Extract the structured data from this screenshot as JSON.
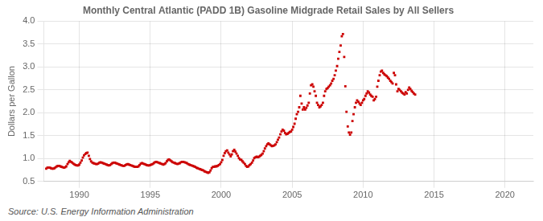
{
  "chart_data": {
    "type": "scatter",
    "title": "Monthly Central Atlantic (PADD 1B) Gasoline Midgrade Retail Sales by All Sellers",
    "y_label": "Dollars per Gallon",
    "annotations": [
      "Source: U.S. Energy Information Administration"
    ],
    "color": "#cc0000",
    "marker": "square",
    "grid": true,
    "xlim": [
      1987.5,
      2022
    ],
    "ylim": [
      0.5,
      4.0
    ],
    "xticks": [
      1990,
      1995,
      2000,
      2005,
      2010,
      2015,
      2020
    ],
    "yticks": [
      0.5,
      {
        "value": 1.0,
        "label": "1.0"
      },
      1.5,
      {
        "value": 2.0,
        "label": "2.0"
      },
      2.5,
      {
        "value": 3.0,
        "label": "3.0"
      },
      3.5,
      {
        "value": 4.0,
        "label": "4.0"
      }
    ],
    "x": [
      1987.67,
      1987.75,
      1987.83,
      1987.92,
      1988.0,
      1988.08,
      1988.17,
      1988.25,
      1988.33,
      1988.42,
      1988.5,
      1988.58,
      1988.67,
      1988.75,
      1988.83,
      1988.92,
      1989.0,
      1989.08,
      1989.17,
      1989.25,
      1989.33,
      1989.42,
      1989.5,
      1989.58,
      1989.67,
      1989.75,
      1989.83,
      1989.92,
      1990.0,
      1990.08,
      1990.17,
      1990.25,
      1990.33,
      1990.42,
      1990.5,
      1990.58,
      1990.67,
      1990.75,
      1990.83,
      1990.92,
      1991.0,
      1991.08,
      1991.17,
      1991.25,
      1991.33,
      1991.42,
      1991.5,
      1991.58,
      1991.67,
      1991.75,
      1991.83,
      1991.92,
      1992.0,
      1992.08,
      1992.17,
      1992.25,
      1992.33,
      1992.42,
      1992.5,
      1992.58,
      1992.67,
      1992.75,
      1992.83,
      1992.92,
      1993.0,
      1993.08,
      1993.17,
      1993.25,
      1993.33,
      1993.42,
      1993.5,
      1993.58,
      1993.67,
      1993.75,
      1993.83,
      1993.92,
      1994.0,
      1994.08,
      1994.17,
      1994.25,
      1994.33,
      1994.42,
      1994.5,
      1994.58,
      1994.67,
      1994.75,
      1994.83,
      1994.92,
      1995.0,
      1995.08,
      1995.17,
      1995.25,
      1995.33,
      1995.42,
      1995.5,
      1995.58,
      1995.67,
      1995.75,
      1995.83,
      1995.92,
      1996.0,
      1996.08,
      1996.17,
      1996.25,
      1996.33,
      1996.42,
      1996.5,
      1996.58,
      1996.67,
      1996.75,
      1996.83,
      1996.92,
      1997.0,
      1997.08,
      1997.17,
      1997.25,
      1997.33,
      1997.42,
      1997.5,
      1997.58,
      1997.67,
      1997.75,
      1997.83,
      1997.92,
      1998.0,
      1998.08,
      1998.17,
      1998.25,
      1998.33,
      1998.42,
      1998.5,
      1998.58,
      1998.67,
      1998.75,
      1998.83,
      1998.92,
      1999.0,
      1999.08,
      1999.17,
      1999.25,
      1999.33,
      1999.42,
      1999.5,
      1999.58,
      1999.67,
      1999.75,
      1999.83,
      1999.92,
      2000.0,
      2000.08,
      2000.17,
      2000.25,
      2000.33,
      2000.42,
      2000.5,
      2000.58,
      2000.67,
      2000.75,
      2000.83,
      2000.92,
      2001.0,
      2001.08,
      2001.17,
      2001.25,
      2001.33,
      2001.42,
      2001.5,
      2001.58,
      2001.67,
      2001.75,
      2001.83,
      2001.92,
      2002.0,
      2002.08,
      2002.17,
      2002.25,
      2002.33,
      2002.42,
      2002.5,
      2002.58,
      2002.67,
      2002.75,
      2002.83,
      2002.92,
      2003.0,
      2003.08,
      2003.17,
      2003.25,
      2003.33,
      2003.42,
      2003.5,
      2003.58,
      2003.67,
      2003.75,
      2003.83,
      2003.92,
      2004.0,
      2004.08,
      2004.17,
      2004.25,
      2004.33,
      2004.42,
      2004.5,
      2004.58,
      2004.67,
      2004.75,
      2004.83,
      2004.92,
      2005.0,
      2005.08,
      2005.17,
      2005.25,
      2005.33,
      2005.42,
      2005.5,
      2005.58,
      2005.67,
      2005.75,
      2005.83,
      2005.92,
      2006.0,
      2006.08,
      2006.17,
      2006.25,
      2006.33,
      2006.42,
      2006.5,
      2006.58,
      2006.67,
      2006.75,
      2006.83,
      2006.92,
      2007.0,
      2007.08,
      2007.17,
      2007.25,
      2007.33,
      2007.42,
      2007.5,
      2007.58,
      2007.67,
      2007.75,
      2007.83,
      2007.92,
      2008.0,
      2008.08,
      2008.17,
      2008.25,
      2008.33,
      2008.42,
      2008.5,
      2008.58,
      2008.67,
      2008.75,
      2008.83,
      2008.92,
      2009.0,
      2009.08,
      2009.17,
      2009.25,
      2009.33,
      2009.42,
      2009.5,
      2009.58,
      2009.67,
      2009.75,
      2009.83,
      2009.92,
      2010.0,
      2010.08,
      2010.17,
      2010.25,
      2010.33,
      2010.42,
      2010.5,
      2010.58,
      2010.67,
      2010.75,
      2010.83,
      2010.92,
      2011.0,
      2011.08,
      2011.17,
      2011.25,
      2011.33,
      2011.42,
      2011.5,
      2011.58,
      2011.67,
      2011.75,
      2011.83,
      2011.92,
      2012.0,
      2012.08,
      2012.17,
      2012.25,
      2012.33,
      2012.42,
      2012.5,
      2012.58,
      2012.67,
      2012.75,
      2012.83,
      2012.92,
      2013.0,
      2013.08,
      2013.17,
      2013.25,
      2013.33,
      2013.42,
      2013.5,
      2013.58,
      2013.67
    ],
    "values": [
      0.78,
      0.8,
      0.8,
      0.8,
      0.79,
      0.78,
      0.78,
      0.79,
      0.81,
      0.83,
      0.84,
      0.84,
      0.83,
      0.82,
      0.81,
      0.8,
      0.81,
      0.83,
      0.88,
      0.92,
      0.95,
      0.93,
      0.91,
      0.89,
      0.87,
      0.86,
      0.85,
      0.85,
      0.87,
      0.91,
      0.96,
      1.02,
      1.07,
      1.1,
      1.12,
      1.13,
      1.06,
      0.99,
      0.94,
      0.91,
      0.9,
      0.89,
      0.88,
      0.88,
      0.89,
      0.91,
      0.92,
      0.91,
      0.9,
      0.89,
      0.88,
      0.87,
      0.86,
      0.85,
      0.86,
      0.88,
      0.9,
      0.91,
      0.91,
      0.9,
      0.89,
      0.88,
      0.87,
      0.86,
      0.85,
      0.84,
      0.84,
      0.86,
      0.87,
      0.88,
      0.87,
      0.86,
      0.85,
      0.84,
      0.83,
      0.82,
      0.82,
      0.82,
      0.83,
      0.86,
      0.89,
      0.9,
      0.89,
      0.88,
      0.87,
      0.86,
      0.85,
      0.85,
      0.86,
      0.87,
      0.88,
      0.9,
      0.92,
      0.93,
      0.92,
      0.91,
      0.9,
      0.89,
      0.88,
      0.87,
      0.88,
      0.9,
      0.94,
      0.97,
      0.98,
      0.96,
      0.94,
      0.92,
      0.91,
      0.9,
      0.89,
      0.88,
      0.89,
      0.9,
      0.92,
      0.93,
      0.93,
      0.92,
      0.91,
      0.9,
      0.88,
      0.87,
      0.86,
      0.85,
      0.84,
      0.83,
      0.82,
      0.8,
      0.79,
      0.78,
      0.77,
      0.76,
      0.75,
      0.74,
      0.72,
      0.71,
      0.7,
      0.69,
      0.7,
      0.74,
      0.79,
      0.82,
      0.82,
      0.83,
      0.83,
      0.84,
      0.86,
      0.88,
      0.92,
      0.97,
      1.06,
      1.12,
      1.16,
      1.18,
      1.13,
      1.09,
      1.05,
      1.09,
      1.16,
      1.19,
      1.15,
      1.11,
      1.06,
      1.01,
      0.98,
      0.97,
      0.94,
      0.91,
      0.88,
      0.84,
      0.82,
      0.83,
      0.86,
      0.88,
      0.91,
      0.96,
      1.01,
      1.03,
      1.04,
      1.03,
      1.04,
      1.06,
      1.08,
      1.11,
      1.16,
      1.22,
      1.27,
      1.31,
      1.33,
      1.31,
      1.29,
      1.27,
      1.28,
      1.29,
      1.31,
      1.36,
      1.41,
      1.46,
      1.53,
      1.59,
      1.63,
      1.61,
      1.56,
      1.53,
      1.54,
      1.56,
      1.58,
      1.59,
      1.63,
      1.69,
      1.76,
      1.87,
      1.97,
      2.02,
      2.12,
      2.37,
      2.2,
      2.07,
      2.12,
      2.07,
      2.11,
      2.16,
      2.22,
      2.42,
      2.6,
      2.62,
      2.57,
      2.47,
      2.37,
      2.22,
      2.17,
      2.12,
      2.14,
      2.17,
      2.22,
      2.37,
      2.47,
      2.52,
      2.54,
      2.57,
      2.6,
      2.64,
      2.7,
      2.74,
      2.82,
      2.92,
      3.02,
      3.18,
      3.33,
      3.47,
      3.67,
      3.72,
      3.22,
      2.58,
      2.02,
      1.7,
      1.57,
      1.52,
      1.57,
      1.82,
      1.97,
      2.12,
      2.22,
      2.27,
      2.24,
      2.2,
      2.17,
      2.22,
      2.27,
      2.3,
      2.37,
      2.42,
      2.47,
      2.44,
      2.4,
      2.37,
      2.35,
      2.27,
      2.3,
      2.35,
      2.57,
      2.7,
      2.82,
      2.9,
      2.92,
      2.87,
      2.84,
      2.82,
      2.8,
      2.77,
      2.74,
      2.7,
      2.67,
      2.64,
      2.87,
      2.82,
      2.62,
      2.47,
      2.52,
      2.5,
      2.47,
      2.44,
      2.42,
      2.4,
      2.45,
      2.42,
      2.5,
      2.55,
      2.52,
      2.48,
      2.45,
      2.42,
      2.4
    ]
  }
}
